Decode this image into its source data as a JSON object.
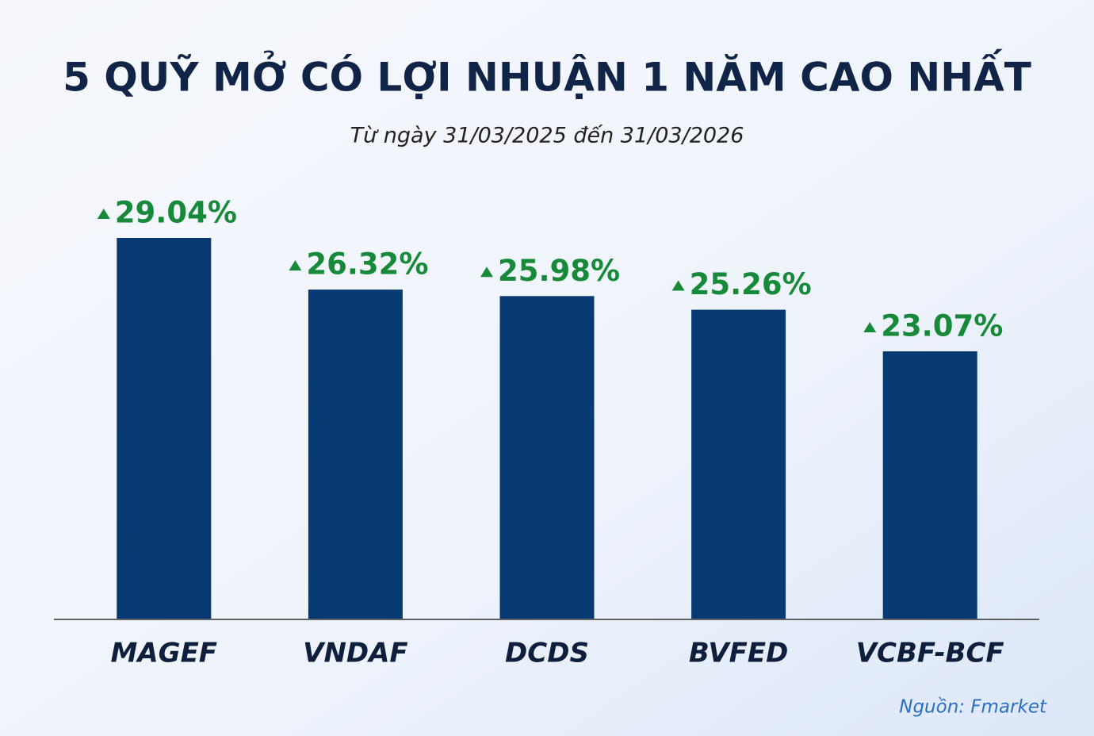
{
  "chart_data": {
    "type": "bar",
    "title": "5 QUỸ MỞ CÓ LỢI NHUẬN 1 NĂM CAO NHẤT",
    "subtitle": "Từ ngày 31/03/2025 đến 31/03/2026",
    "categories": [
      "MAGEF",
      "VNDAF",
      "DCDS",
      "BVFED",
      "VCBF-BCF"
    ],
    "values": [
      29.04,
      26.32,
      25.98,
      25.26,
      23.07
    ],
    "value_labels": [
      "29.04%",
      "26.32%",
      "25.98%",
      "25.26%",
      "23.07%"
    ],
    "color": "#073a73",
    "label_color": "#178a3a",
    "ylim": [
      9,
      30
    ],
    "source": "Nguồn: Fmarket"
  }
}
